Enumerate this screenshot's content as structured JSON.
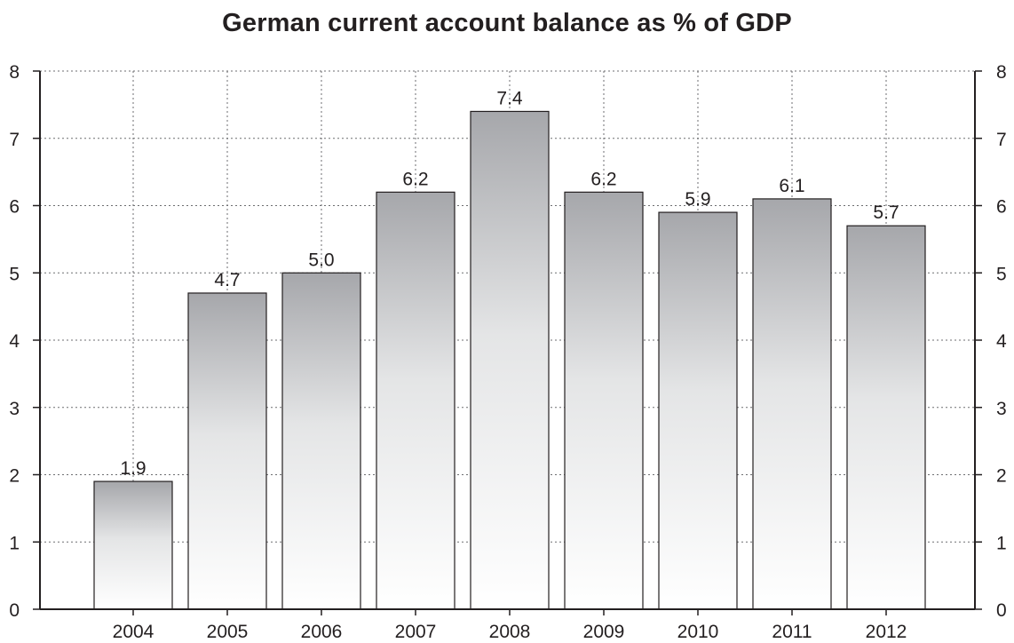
{
  "chart_data": {
    "type": "bar",
    "title": "German current account balance as % of GDP",
    "categories": [
      "2004",
      "2005",
      "2006",
      "2007",
      "2008",
      "2009",
      "2010",
      "2011",
      "2012"
    ],
    "values": [
      1.9,
      4.7,
      5.0,
      6.2,
      7.4,
      6.2,
      5.9,
      6.1,
      5.7
    ],
    "value_labels": [
      "1.9",
      "4.7",
      "5.0",
      "6.2",
      "7.4",
      "6.2",
      "5.9",
      "6.1",
      "5.7"
    ],
    "ylim": [
      0,
      8
    ],
    "y_ticks": [
      "0",
      "1",
      "2",
      "3",
      "4",
      "5",
      "6",
      "7",
      "8"
    ],
    "xlabel": "",
    "ylabel": "",
    "grid": true,
    "legend": "none",
    "y_axis_sides": "left-and-right",
    "bar_fill": "gradient-grey-to-white",
    "colors": {
      "bar_top": "#a6a7ab",
      "bar_bottom": "#ffffff",
      "bar_stroke": "#231f20",
      "grid": "#6d6e71"
    }
  }
}
